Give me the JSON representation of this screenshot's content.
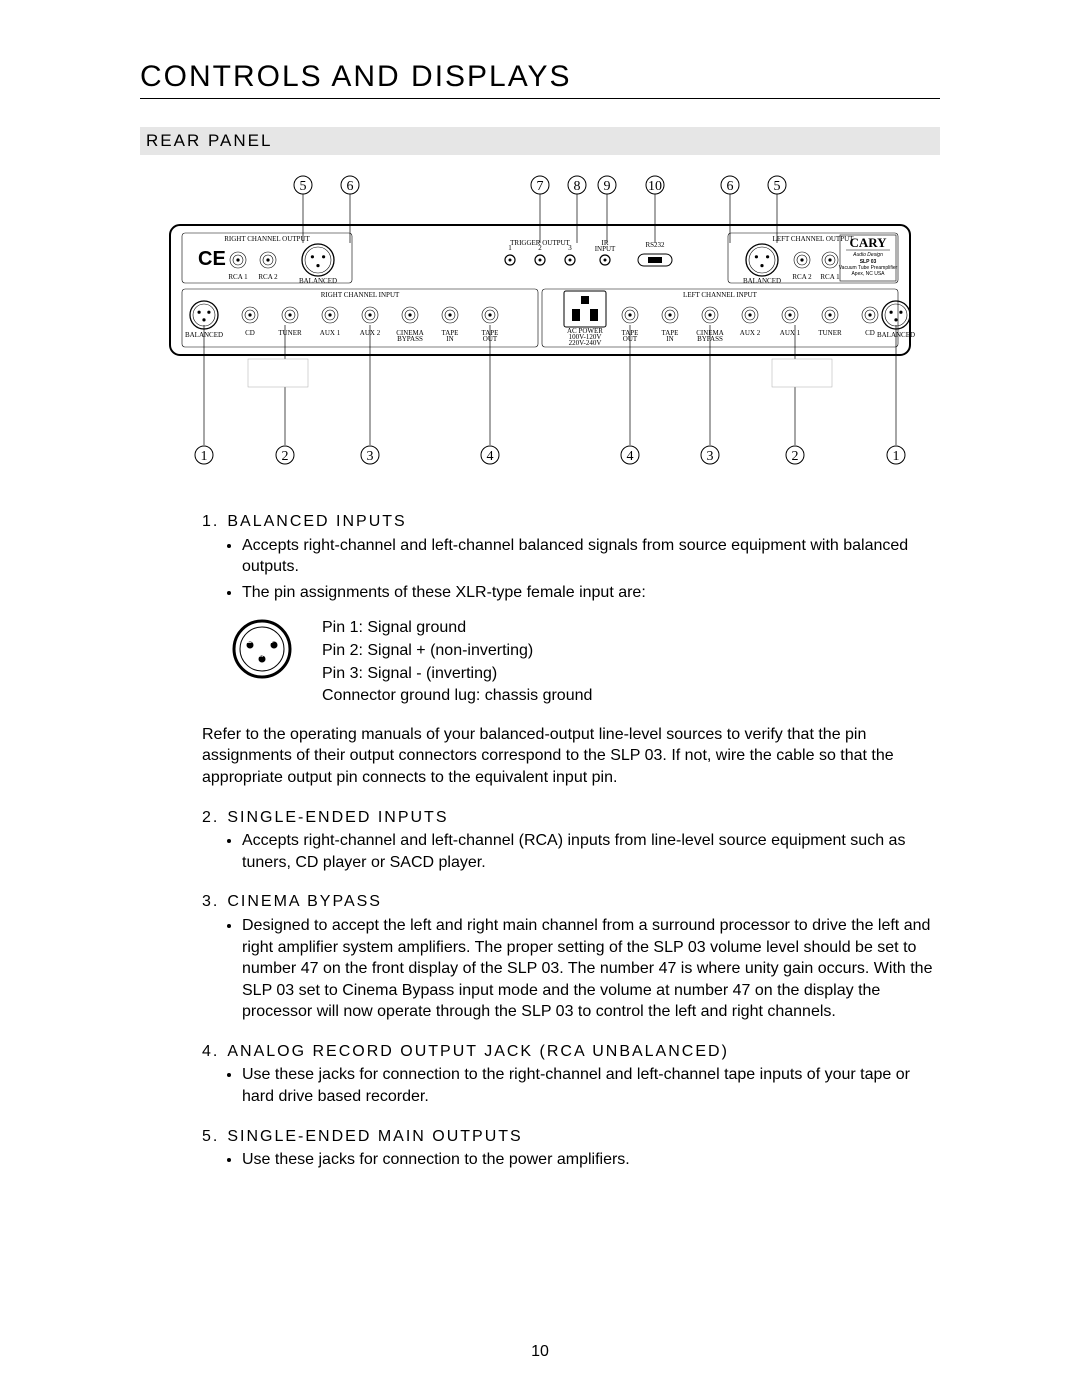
{
  "page": {
    "title": "CONTROLS AND DISPLAYS",
    "subhead": "REAR PANEL",
    "page_number": "10"
  },
  "diagram": {
    "top_callouts": [
      "5",
      "6",
      "7",
      "8",
      "9",
      "10",
      "6",
      "5"
    ],
    "bottom_callouts_left": [
      "1",
      "2",
      "3",
      "4"
    ],
    "bottom_callouts_right": [
      "4",
      "3",
      "2",
      "1"
    ],
    "upper_row": {
      "right_out_label": "RIGHT CHANNEL OUTPUT",
      "left_out_label": "LEFT CHANNEL OUTPUT",
      "rca1": "RCA 1",
      "rca2": "RCA 2",
      "balanced": "BALANCED",
      "trigger": "TRIGGER OUTPUT",
      "ir": "IR\nINPUT",
      "rs232": "RS232"
    },
    "lower_row": {
      "right_in_label": "RIGHT CHANNEL INPUT",
      "left_in_label": "LEFT CHANNEL INPUT",
      "labels_l": [
        "BALANCED",
        "CD",
        "TUNER",
        "AUX 1",
        "AUX 2",
        "CINEMA\nBYPASS",
        "TAPE\nIN",
        "TAPE\nOUT"
      ],
      "labels_r": [
        "TAPE\nOUT",
        "TAPE\nIN",
        "CINEMA\nBYPASS",
        "AUX 2",
        "AUX 1",
        "TUNER",
        "CD",
        "BALANCED"
      ],
      "ac": "AC POWER\n100V-120V\n220V-240V"
    },
    "brand": {
      "name": "CARY",
      "sub1": "Audio Design",
      "model": "SLP 03",
      "sub2": "Vacuum Tube Preamplifier",
      "sub3": "Apex, NC USA"
    }
  },
  "pins": {
    "p1": "Pin 1: Signal ground",
    "p2": "Pin 2: Signal + (non-inverting)",
    "p3": "Pin 3: Signal - (inverting)",
    "p4": "Connector ground lug: chassis ground"
  },
  "items": [
    {
      "n": "1.",
      "title": "BALANCED INPUTS",
      "bullets": [
        "Accepts right-channel and left-channel balanced signals from source equipment with balanced outputs.",
        "The pin assignments of these XLR-type female input are:"
      ],
      "after": "Refer to the operating manuals of your balanced-output line-level sources to verify that the pin assignments of their output connectors correspond to the SLP 03. If not, wire the cable so that the appropriate output pin connects to the equivalent input pin."
    },
    {
      "n": "2.",
      "title": "SINGLE-ENDED INPUTS",
      "bullets": [
        "Accepts right-channel and left-channel (RCA) inputs from line-level source equipment such as tuners, CD player or SACD player."
      ]
    },
    {
      "n": "3.",
      "title": "CINEMA BYPASS",
      "bullets": [
        "Designed to accept the left and right main channel from a surround processor to drive the left and right amplifier system amplifiers. The proper setting of the SLP 03 volume level should be set to number 47 on the front display of the SLP 03.  The number 47 is where unity gain occurs. With the SLP 03 set to Cinema Bypass input mode and the volume at number 47 on the display the processor will now operate through the SLP 03 to control the left and right channels."
      ]
    },
    {
      "n": "4.",
      "title": "ANALOG RECORD OUTPUT JACK (RCA UNBALANCED)",
      "bullets": [
        "Use these jacks for connection to the right-channel and left-channel tape inputs of your tape or hard drive based recorder."
      ]
    },
    {
      "n": "5.",
      "title": "SINGLE-ENDED MAIN OUTPUTS",
      "bullets": [
        "Use these jacks for connection to the power amplifiers."
      ]
    }
  ]
}
